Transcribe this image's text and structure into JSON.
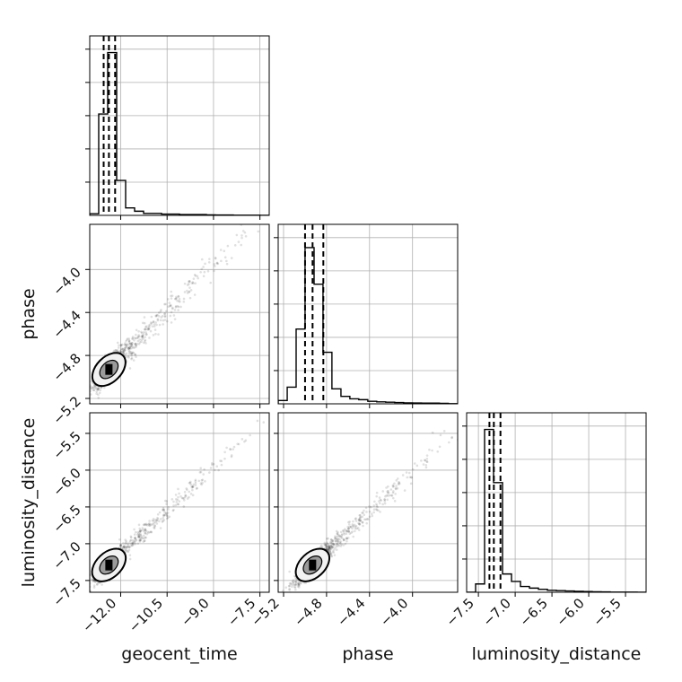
{
  "chart_data": {
    "type": "corner",
    "parameters": [
      "geocent_time",
      "phase",
      "luminosity_distance"
    ],
    "axis_labels": {
      "x": [
        "geocent_time",
        "phase",
        "luminosity_distance"
      ],
      "y": [
        "",
        "phase",
        "luminosity_distance"
      ]
    },
    "ranges": {
      "geocent_time": [
        -13.0,
        -7.2
      ],
      "phase": [
        -5.25,
        -3.58
      ],
      "luminosity_distance": [
        -7.66,
        -5.22
      ]
    },
    "ticks": {
      "geocent_time": [
        {
          "v": -12.0,
          "label": "−12.0"
        },
        {
          "v": -10.5,
          "label": "−10.5"
        },
        {
          "v": -9.0,
          "label": "−9.0"
        },
        {
          "v": -7.5,
          "label": "−7.5"
        }
      ],
      "phase": [
        {
          "v": -5.2,
          "label": "−5.2"
        },
        {
          "v": -4.8,
          "label": "−4.8"
        },
        {
          "v": -4.4,
          "label": "−4.4"
        },
        {
          "v": -4.0,
          "label": "−4.0"
        }
      ],
      "luminosity_distance": [
        {
          "v": -7.5,
          "label": "−7.5"
        },
        {
          "v": -7.0,
          "label": "−7.0"
        },
        {
          "v": -6.5,
          "label": "−6.5"
        },
        {
          "v": -6.0,
          "label": "−6.0"
        },
        {
          "v": -5.5,
          "label": "−5.5"
        }
      ]
    },
    "quantiles": {
      "geocent_time": [
        -12.55,
        -12.38,
        -12.18
      ],
      "phase": [
        -5.0,
        -4.93,
        -4.83
      ],
      "luminosity_distance": [
        -7.35,
        -7.29,
        -7.2
      ]
    },
    "histograms": {
      "geocent_time": {
        "edges": [
          -13.0,
          -12.71,
          -12.42,
          -12.13,
          -11.84,
          -11.55,
          -11.26,
          -10.97,
          -10.68,
          -10.39,
          -10.1,
          -9.81,
          -9.52,
          -9.23,
          -8.94,
          -8.65,
          -8.36,
          -8.07,
          -7.78,
          -7.49,
          -7.2
        ],
        "counts": [
          1.0,
          61.0,
          98.0,
          21.0,
          4.5,
          2.5,
          1.2,
          1.2,
          0.8,
          0.8,
          0.5,
          0.5,
          0.5,
          0.3,
          0.2,
          0.2,
          0.1,
          0.1,
          0.1,
          0.0
        ]
      },
      "phase": {
        "edges": [
          -5.25,
          -5.166,
          -5.083,
          -5.0,
          -4.916,
          -4.833,
          -4.75,
          -4.666,
          -4.583,
          -4.5,
          -4.416,
          -4.333,
          -4.25,
          -4.166,
          -4.083,
          -4.0,
          -3.916,
          -3.833,
          -3.75,
          -3.666,
          -3.583
        ],
        "counts": [
          2.0,
          10.0,
          45.0,
          94.0,
          72.0,
          31.0,
          9.0,
          4.5,
          3.0,
          2.5,
          1.5,
          1.2,
          1.0,
          0.8,
          0.6,
          0.5,
          0.4,
          0.4,
          0.3,
          0.1
        ]
      },
      "luminosity_distance": {
        "edges": [
          -7.66,
          -7.538,
          -7.416,
          -7.294,
          -7.172,
          -7.05,
          -6.928,
          -6.806,
          -6.684,
          -6.562,
          -6.44,
          -6.318,
          -6.196,
          -6.074,
          -5.952,
          -5.83,
          -5.708,
          -5.586,
          -5.464,
          -5.342,
          -5.22
        ],
        "counts": [
          0.0,
          5.0,
          98.0,
          66.0,
          11.0,
          6.5,
          3.5,
          2.5,
          1.8,
          1.2,
          1.0,
          0.8,
          0.6,
          0.4,
          0.3,
          0.2,
          0.1,
          0.1,
          0.1,
          0.0
        ]
      }
    },
    "hist_ymax": 108,
    "grid": true,
    "pairs": [
      {
        "x": "geocent_time",
        "y": "phase",
        "center": [
          -12.38,
          -4.93
        ],
        "spread": [
          0.22,
          0.07
        ],
        "trend": {
          "slope": 0.2865,
          "intercept": -1.383
        }
      },
      {
        "x": "geocent_time",
        "y": "luminosity_distance",
        "center": [
          -12.38,
          -7.29
        ],
        "spread": [
          0.22,
          0.08
        ],
        "trend": {
          "slope": 0.3915,
          "intercept": -2.443
        }
      },
      {
        "x": "phase",
        "y": "luminosity_distance",
        "center": [
          -4.93,
          -7.29
        ],
        "spread": [
          0.07,
          0.08
        ],
        "trend": {
          "slope": 1.366,
          "intercept": -0.556
        }
      }
    ],
    "colors": {
      "hist": "#000000",
      "grid": "#b0b0b0",
      "scatter": "#000000",
      "contour_fill": "#9a9a9a"
    }
  }
}
